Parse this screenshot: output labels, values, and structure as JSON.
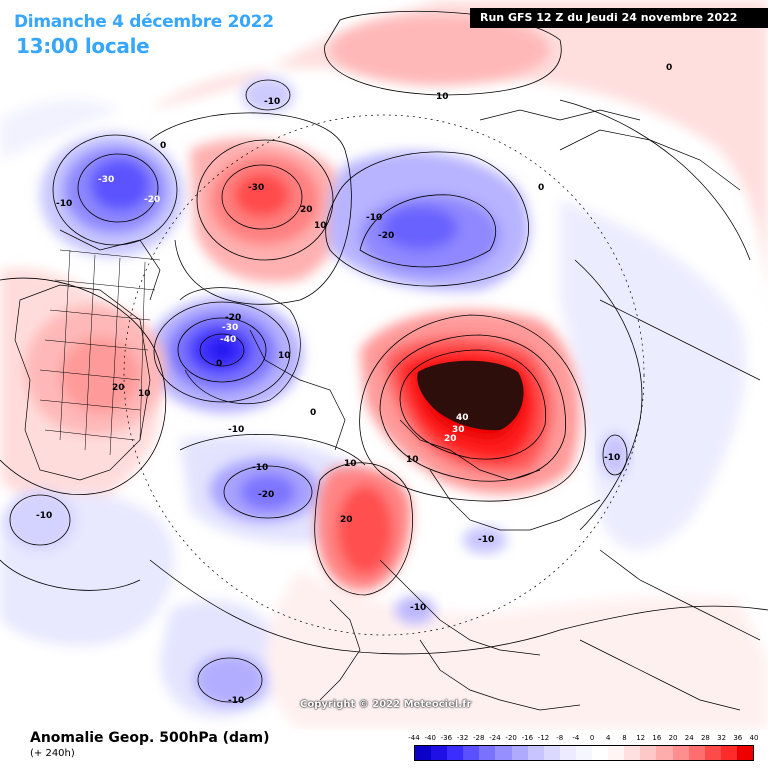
{
  "header": {
    "date": "Dimanche 4 décembre 2022",
    "local_time": "13:00 locale",
    "run": "Run GFS 12 Z du Jeudi 24 novembre 2022"
  },
  "copyright": "Copyright © 2022 Meteociel.fr",
  "footer": {
    "title": "Anomalie Geop. 500hPa (dam)",
    "subtitle": "(+ 240h)"
  },
  "scale": {
    "ticks": [
      "-44",
      "-40",
      "-36",
      "-32",
      "-28",
      "-24",
      "-20",
      "-16",
      "-12",
      "-8",
      "-4",
      "0",
      "4",
      "8",
      "12",
      "16",
      "20",
      "24",
      "28",
      "32",
      "36",
      "40"
    ],
    "colors": [
      "#0a00c8",
      "#1f10e6",
      "#3a2eff",
      "#5a50ff",
      "#7a72ff",
      "#968fff",
      "#b0aaff",
      "#c8c4ff",
      "#dcd9ff",
      "#ecebff",
      "#f6f6ff",
      "#ffffff",
      "#fff5f5",
      "#ffe0e0",
      "#ffc8c8",
      "#ffacac",
      "#ff8e8e",
      "#ff6e6e",
      "#ff4a4a",
      "#ff2a2a",
      "#ee0000"
    ]
  },
  "contour_labels": [
    {
      "id": "l1",
      "text": "-30"
    },
    {
      "id": "l2",
      "text": "-20"
    },
    {
      "id": "l3",
      "text": "-10"
    },
    {
      "id": "l4",
      "text": "0"
    },
    {
      "id": "l5",
      "text": "-10"
    },
    {
      "id": "l6",
      "text": "10"
    },
    {
      "id": "l7",
      "text": "-30"
    },
    {
      "id": "l8",
      "text": "20"
    },
    {
      "id": "l9",
      "text": "10"
    },
    {
      "id": "l10",
      "text": "-10"
    },
    {
      "id": "l11",
      "text": "-20"
    },
    {
      "id": "l12",
      "text": "0"
    },
    {
      "id": "l13",
      "text": "0"
    },
    {
      "id": "l14",
      "text": "-20"
    },
    {
      "id": "l15",
      "text": "-30"
    },
    {
      "id": "l16",
      "text": "-40"
    },
    {
      "id": "l17",
      "text": "10"
    },
    {
      "id": "l18",
      "text": "20"
    },
    {
      "id": "l19",
      "text": "10"
    },
    {
      "id": "l20",
      "text": "-10"
    },
    {
      "id": "l21",
      "text": "0"
    },
    {
      "id": "l22",
      "text": "-10"
    },
    {
      "id": "l23",
      "text": "-20"
    },
    {
      "id": "l24",
      "text": "10"
    },
    {
      "id": "l25",
      "text": "40"
    },
    {
      "id": "l26",
      "text": "30"
    },
    {
      "id": "l27",
      "text": "20"
    },
    {
      "id": "l28",
      "text": "10"
    },
    {
      "id": "l29",
      "text": "20"
    },
    {
      "id": "l30",
      "text": "-10"
    },
    {
      "id": "l31",
      "text": "-10"
    },
    {
      "id": "l32",
      "text": "-10"
    },
    {
      "id": "l33",
      "text": "-10"
    },
    {
      "id": "l34",
      "text": "-10"
    },
    {
      "id": "l35",
      "text": "0"
    }
  ]
}
